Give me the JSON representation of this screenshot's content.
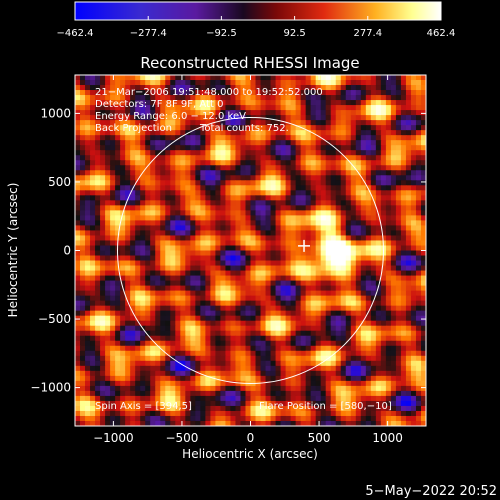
{
  "chart_data": {
    "type": "heatmap",
    "title": "Reconstructed RHESSI Image",
    "xlabel": "Heliocentric X (arcsec)",
    "ylabel": "Heliocentric Y (arcsec)",
    "xlim": [
      -1280,
      1280
    ],
    "ylim": [
      -1280,
      1280
    ],
    "xticks": [
      -1000,
      -500,
      0,
      500,
      1000
    ],
    "xtick_labels": [
      "−1000",
      "−500",
      "0",
      "500",
      "1000"
    ],
    "yticks": [
      -1000,
      -500,
      0,
      500,
      1000
    ],
    "yticks_labels": [
      "−1000",
      "−500",
      "0",
      "500",
      "1000"
    ],
    "colorbar": {
      "min": -462.4,
      "max": 462.4,
      "tick_values": [
        -462.4,
        -277.4,
        -92.5,
        92.5,
        277.4,
        462.4
      ],
      "tick_labels": [
        "−462.4",
        "−277.4",
        "−92.5",
        "92.5",
        "277.4",
        "462.4"
      ],
      "colors": [
        "#0000ff",
        "#5a1aa0",
        "#111111",
        "#cc1010",
        "#ff7a00",
        "#ffff80",
        "#ffffff"
      ]
    },
    "annotations": [
      "21−Mar−2006 19:51:48.000 to 19:52:52.000",
      "Detectors: 7F 8F 9F, Att 0",
      "Energy Range: 6.0 − 12.0 keV",
      "Back Projection",
      "Total counts: 752."
    ],
    "spin_axis_label": "Spin Axis = [394,5]",
    "flare_position_label": "Flare Position = [580,−10]",
    "spin_axis": [
      394,
      5
    ],
    "flare_position": [
      580,
      -10
    ],
    "solar_limb_radius": 970,
    "date_stamp": "5−May−2022 20:52"
  }
}
